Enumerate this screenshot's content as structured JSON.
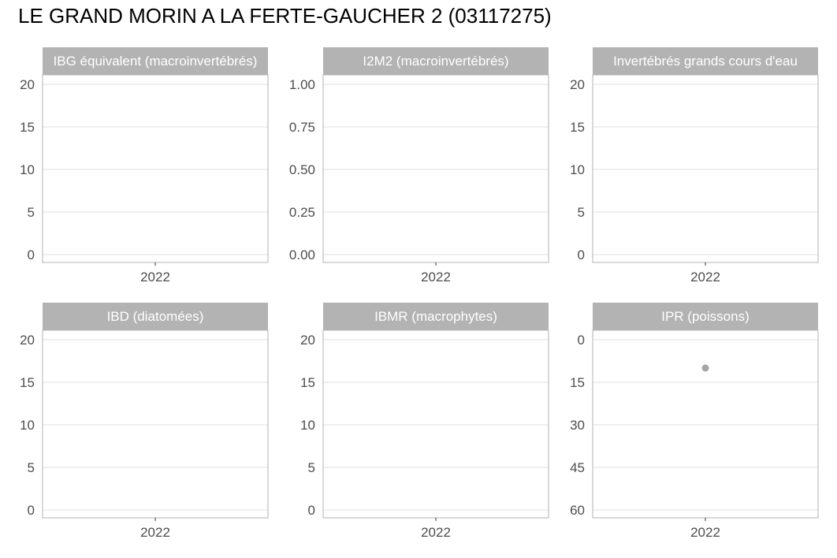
{
  "page": {
    "title": "LE GRAND MORIN A LA FERTE-GAUCHER 2 (03117275)"
  },
  "colors": {
    "strip_background": "#b3b3b3",
    "panel_border": "#b3b3b3",
    "grid": "#e6e6e6",
    "point": "#a6a6a6",
    "tick_text": "#4d4d4d"
  },
  "chart_data": [
    {
      "type": "scatter",
      "title": "IBG équivalent (macroinvertébrés)",
      "categories": [
        "2022"
      ],
      "yticks": [
        "0",
        "5",
        "10",
        "15",
        "20"
      ],
      "ylim": [
        0,
        20
      ],
      "reversed": false,
      "points": []
    },
    {
      "type": "scatter",
      "title": "I2M2 (macroinvertébrés)",
      "categories": [
        "2022"
      ],
      "yticks": [
        "0.00",
        "0.25",
        "0.50",
        "0.75",
        "1.00"
      ],
      "ylim": [
        0,
        1
      ],
      "reversed": false,
      "points": []
    },
    {
      "type": "scatter",
      "title": "Invertébrés grands cours d'eau",
      "categories": [
        "2022"
      ],
      "yticks": [
        "0",
        "5",
        "10",
        "15",
        "20"
      ],
      "ylim": [
        0,
        20
      ],
      "reversed": false,
      "points": []
    },
    {
      "type": "scatter",
      "title": "IBD (diatomées)",
      "categories": [
        "2022"
      ],
      "yticks": [
        "0",
        "5",
        "10",
        "15",
        "20"
      ],
      "ylim": [
        0,
        20
      ],
      "reversed": false,
      "points": []
    },
    {
      "type": "scatter",
      "title": "IBMR (macrophytes)",
      "categories": [
        "2022"
      ],
      "yticks": [
        "0",
        "5",
        "10",
        "15",
        "20"
      ],
      "ylim": [
        0,
        20
      ],
      "reversed": false,
      "points": []
    },
    {
      "type": "scatter",
      "title": "IPR (poissons)",
      "categories": [
        "2022"
      ],
      "yticks": [
        "0",
        "15",
        "30",
        "45",
        "60"
      ],
      "ylim": [
        0,
        60
      ],
      "reversed": true,
      "points": [
        {
          "x": "2022",
          "y": 10
        }
      ]
    }
  ]
}
